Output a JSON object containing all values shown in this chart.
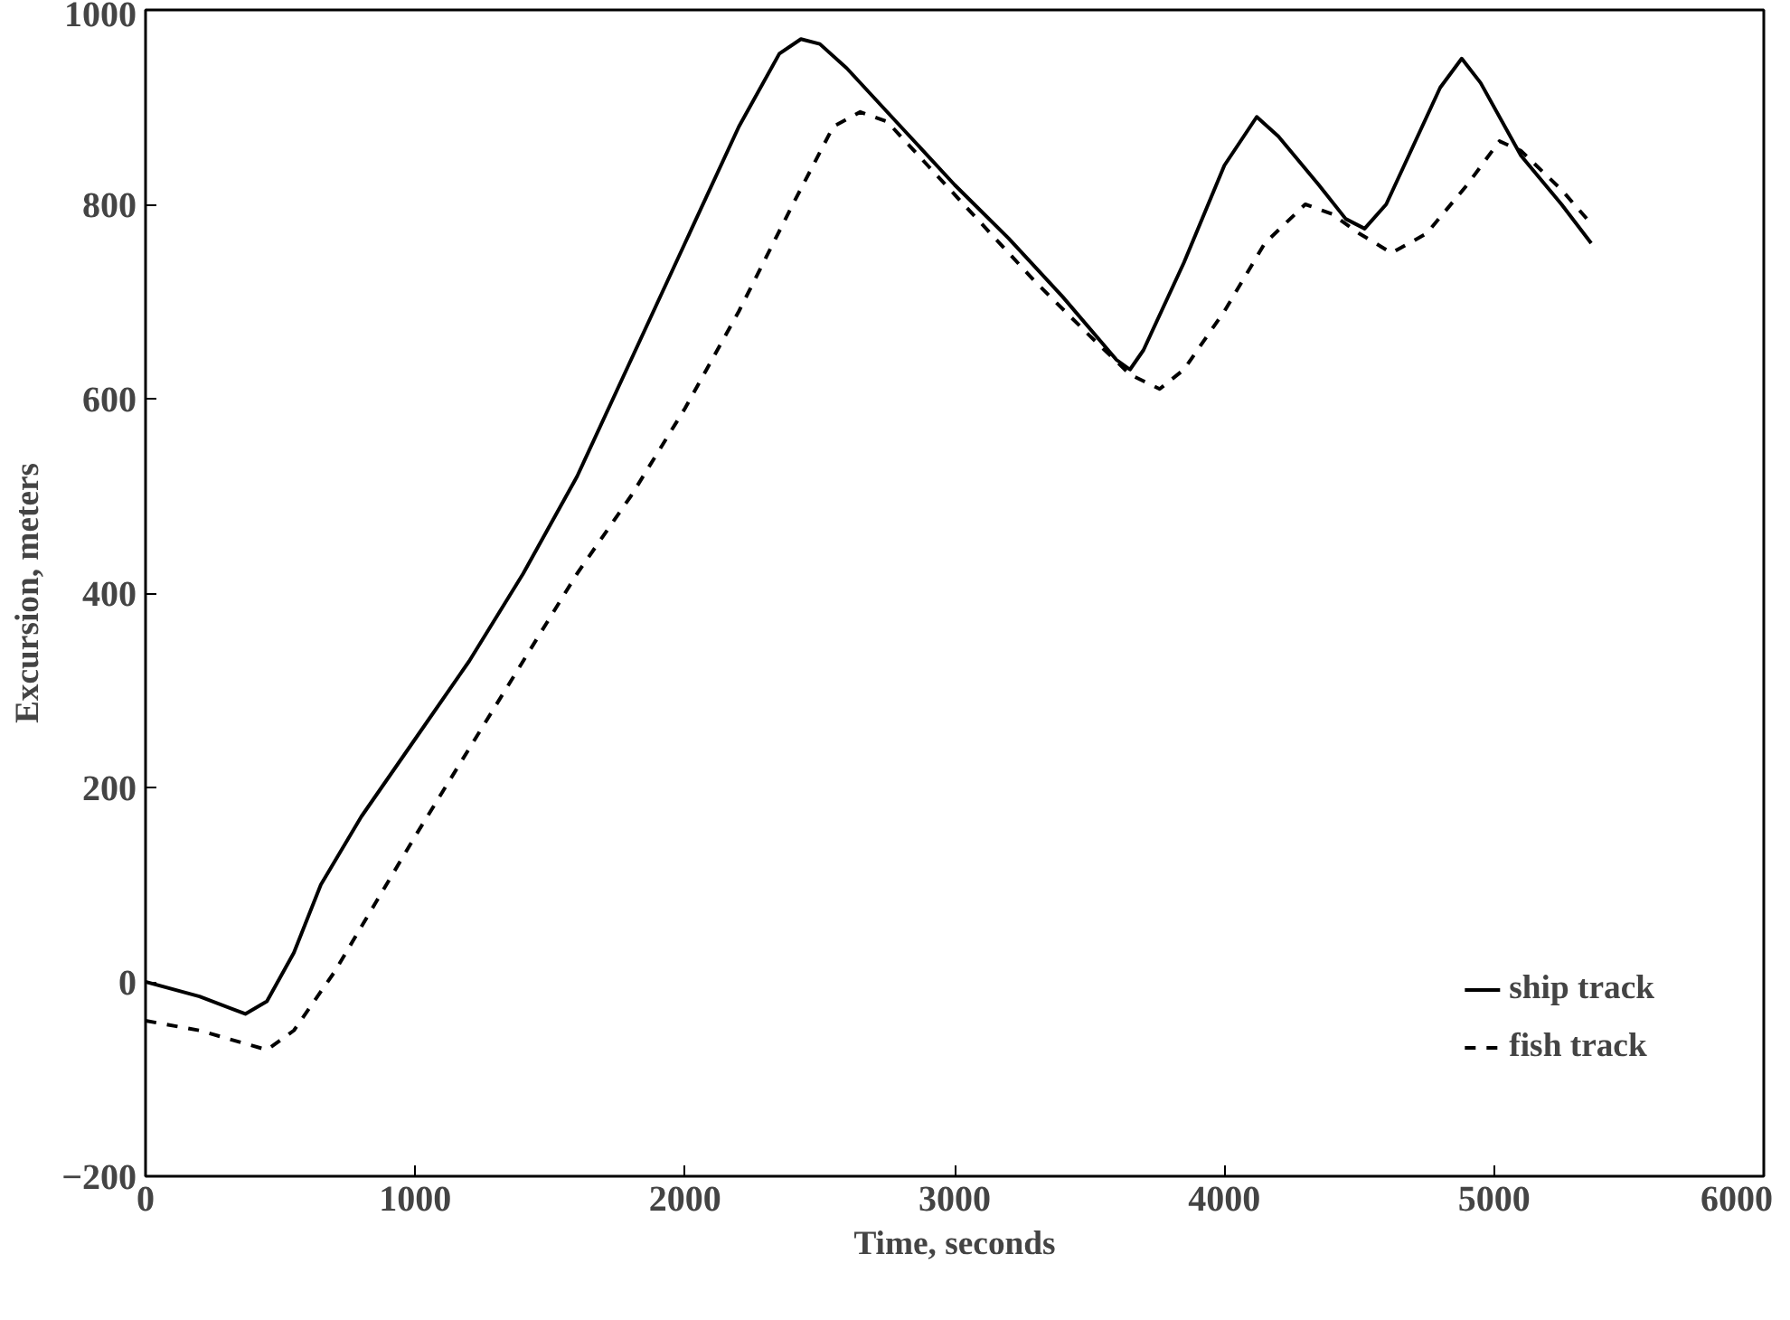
{
  "chart_data": {
    "type": "line",
    "xlabel": "Time, seconds",
    "ylabel": "Excursion, meters",
    "xlim": [
      0,
      6000
    ],
    "xticks": [
      0,
      1000,
      2000,
      3000,
      4000,
      5000,
      6000
    ],
    "ylim": [
      -200,
      1000
    ],
    "yticks": [
      -200,
      0,
      200,
      400,
      600,
      800,
      1000
    ],
    "grid": false,
    "legend": "bottom right",
    "series": [
      {
        "name": "ship track",
        "color": "#000000",
        "line_style": "solid",
        "x": [
          0,
          200,
          370,
          450,
          550,
          650,
          800,
          1000,
          1200,
          1400,
          1600,
          1800,
          2000,
          2200,
          2350,
          2430,
          2500,
          2600,
          2800,
          3000,
          3200,
          3400,
          3600,
          3650,
          3700,
          3850,
          4000,
          4120,
          4200,
          4350,
          4450,
          4520,
          4600,
          4700,
          4800,
          4880,
          4950,
          5100,
          5250,
          5360
        ],
        "values": [
          0,
          -15,
          -33,
          -20,
          30,
          100,
          170,
          250,
          330,
          420,
          520,
          640,
          760,
          880,
          955,
          970,
          965,
          940,
          880,
          820,
          765,
          705,
          640,
          630,
          650,
          740,
          840,
          890,
          870,
          820,
          785,
          775,
          800,
          860,
          920,
          950,
          925,
          850,
          800,
          760
        ]
      },
      {
        "name": "fish track",
        "color": "#000000",
        "line_style": "dashed",
        "x": [
          0,
          200,
          450,
          550,
          700,
          850,
          1000,
          1200,
          1400,
          1600,
          1800,
          2000,
          2200,
          2400,
          2550,
          2650,
          2750,
          2900,
          3100,
          3300,
          3500,
          3650,
          3760,
          3850,
          4000,
          4150,
          4300,
          4400,
          4500,
          4620,
          4750,
          4900,
          5020,
          5100,
          5250,
          5360
        ],
        "values": [
          -40,
          -50,
          -70,
          -50,
          10,
          80,
          150,
          240,
          330,
          420,
          500,
          590,
          690,
          800,
          880,
          895,
          885,
          840,
          780,
          720,
          665,
          625,
          610,
          630,
          690,
          760,
          800,
          790,
          770,
          750,
          770,
          820,
          865,
          855,
          815,
          780
        ]
      }
    ]
  }
}
